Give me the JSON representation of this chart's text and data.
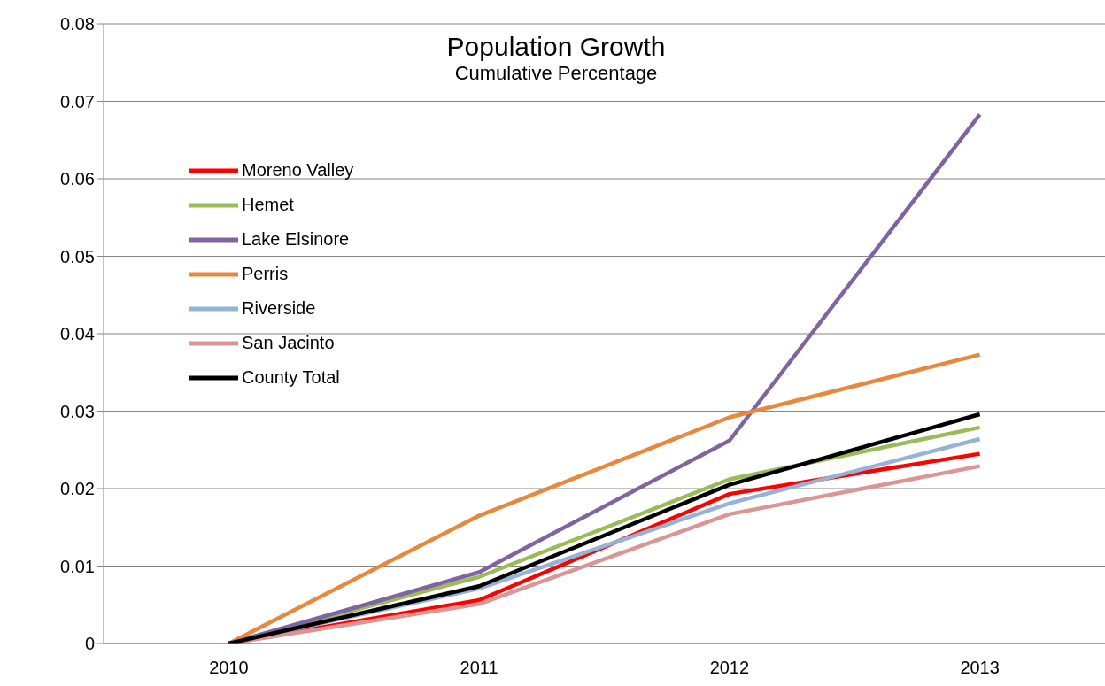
{
  "chart_data": {
    "type": "line",
    "title": "Population Growth",
    "subtitle": "Cumulative Percentage",
    "categories": [
      "2010",
      "2011",
      "2012",
      "2013"
    ],
    "series": [
      {
        "name": "Moreno Valley",
        "color": "#ff0000",
        "values": [
          0,
          0.0056,
          0.0193,
          0.0245
        ]
      },
      {
        "name": "Hemet",
        "color": "#9bbb59",
        "values": [
          0,
          0.0086,
          0.0212,
          0.0279
        ]
      },
      {
        "name": "Lake Elsinore",
        "color": "#8064a2",
        "values": [
          0,
          0.0092,
          0.0262,
          0.0683
        ]
      },
      {
        "name": "Perris",
        "color": "#e8883c",
        "values": [
          0,
          0.0165,
          0.0292,
          0.0373
        ]
      },
      {
        "name": "Riverside",
        "color": "#95b3d7",
        "values": [
          0,
          0.0071,
          0.0181,
          0.0264
        ]
      },
      {
        "name": "San Jacinto",
        "color": "#d99694",
        "values": [
          0,
          0.0051,
          0.0167,
          0.0229
        ]
      },
      {
        "name": "County Total",
        "color": "#000000",
        "values": [
          0,
          0.0074,
          0.0205,
          0.0296
        ]
      }
    ],
    "ylim": [
      0,
      0.08
    ],
    "yticks": [
      0,
      0.01,
      0.02,
      0.03,
      0.04,
      0.05,
      0.06,
      0.07,
      0.08
    ],
    "grid": "y",
    "legend": "top left",
    "marker": "none",
    "line_style": "solid"
  }
}
